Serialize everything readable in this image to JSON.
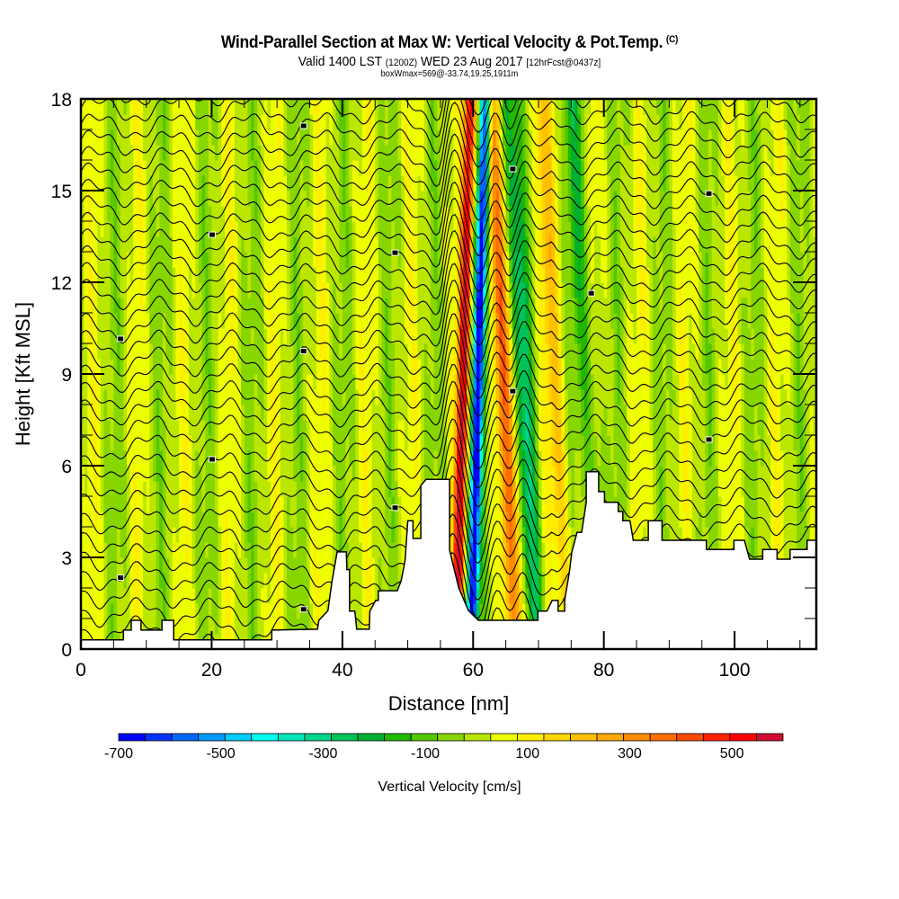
{
  "header": {
    "title": "Wind-Parallel Section at Max W: Vertical Velocity & Pot.Temp.",
    "copyright_mark": "(C)",
    "valid_prefix": "Valid 1400 LST",
    "valid_utc": "(1200Z)",
    "valid_date": "WED 23 Aug 2017",
    "forecast_info": "[12hrFcst@0437z]",
    "box_info": "boxWmax=569@-33.74,19.25,1911m"
  },
  "chart_data": {
    "type": "heatmap",
    "title": "Wind-Parallel Section at Max W: Vertical Velocity & Pot.Temp.",
    "subtitle": "Valid 1400 LST (1200Z) WED 23 Aug 2017 [12hrFcst@0437z]",
    "xlabel": "Distance [nm]",
    "ylabel": "Height [Kft MSL]",
    "xlim": [
      0,
      112.5
    ],
    "ylim": [
      0,
      18
    ],
    "x_ticks": [
      0,
      20,
      40,
      60,
      80,
      100
    ],
    "x_tick_labels": [
      "0",
      "20",
      "40",
      "60",
      "80",
      "100"
    ],
    "y_ticks": [
      0,
      3,
      6,
      9,
      12,
      15,
      18
    ],
    "y_tick_labels": [
      "0",
      "3",
      "6",
      "9",
      "12",
      "15",
      "18"
    ],
    "colorbar": {
      "title": "Vertical Velocity [cm/s]",
      "min": -700,
      "max": 600,
      "step": 50,
      "tick_values": [
        -700,
        -500,
        -300,
        -100,
        100,
        300,
        500
      ],
      "tick_labels": [
        "-700",
        "-500",
        "-300",
        "-100",
        "100",
        "300",
        "500"
      ],
      "colors": [
        "#0000ff",
        "#0033ff",
        "#0066ff",
        "#0099ff",
        "#00ccff",
        "#00ffee",
        "#00e6bb",
        "#00d68a",
        "#00c45a",
        "#00b030",
        "#22b800",
        "#55c800",
        "#88d600",
        "#bbe600",
        "#eeff00",
        "#ffee00",
        "#ffd500",
        "#ffc000",
        "#ffa800",
        "#ff8c00",
        "#ff6e00",
        "#ff4a00",
        "#ff2200",
        "#ff0000",
        "#d00a30"
      ]
    },
    "field_features": [
      {
        "name": "updraft core",
        "x_nm": 58.5,
        "w_cm_s": 520
      },
      {
        "name": "downdraft core",
        "x_nm": 60.8,
        "w_cm_s": -650
      },
      {
        "name": "updraft band",
        "x_nm": 64.8,
        "w_cm_s": 300
      },
      {
        "name": "downdraft band",
        "x_nm": 67.5,
        "w_cm_s": -250
      },
      {
        "name": "updraft band",
        "x_nm": 72.5,
        "w_cm_s": 150
      },
      {
        "name": "downdraft band",
        "x_nm": 77.5,
        "w_cm_s": -150
      }
    ],
    "overlay": "Potential temperature contours (black lines)",
    "terrain_profile": {
      "x_nm": [
        0,
        6.5,
        6.5,
        7.7,
        7.7,
        9.2,
        9.2,
        12.4,
        12.4,
        14.2,
        14.2,
        29.2,
        29.2,
        36.2,
        36.4,
        37.8,
        38.4,
        39.2,
        40.6,
        40.7,
        41.1,
        41.1,
        41.9,
        42.2,
        44.1,
        44.2,
        45.1,
        45.5,
        45.5,
        48.4,
        49.0,
        49.6,
        50.0,
        50.8,
        50.8,
        52.0,
        52.0,
        52.8,
        52.8,
        54.3,
        56.4,
        56.4,
        57.0,
        57.8,
        58.6,
        59.3,
        60.8,
        62.1,
        69.9,
        69.9,
        71.3,
        72.1,
        73.0,
        73.0,
        74.0,
        74.0,
        74.7,
        75.1,
        75.9,
        76.6,
        77.3,
        77.3,
        79.2,
        79.2,
        80.1,
        80.1,
        82.2,
        82.2,
        82.9,
        82.9,
        84.0,
        84.5,
        86.8,
        86.8,
        88.9,
        88.9,
        95.7,
        95.7,
        99.9,
        99.9,
        101.5,
        102.3,
        104.3,
        104.3,
        106.5,
        106.5,
        108.5,
        108.5,
        111.1,
        111.1,
        112.5
      ],
      "height_kft": [
        0.3,
        0.3,
        0.62,
        0.62,
        0.94,
        0.94,
        0.62,
        0.62,
        0.94,
        0.94,
        0.3,
        0.3,
        0.62,
        0.65,
        0.94,
        1.26,
        2.2,
        3.18,
        3.18,
        2.6,
        2.6,
        1.24,
        1.24,
        0.65,
        0.65,
        1.24,
        1.59,
        1.59,
        1.91,
        1.91,
        2.24,
        2.9,
        4.2,
        4.2,
        3.62,
        3.62,
        5.35,
        5.55,
        5.55,
        5.55,
        5.55,
        3.24,
        2.7,
        2.0,
        1.6,
        1.26,
        0.94,
        0.94,
        0.94,
        1.24,
        1.24,
        1.59,
        1.59,
        1.24,
        1.24,
        1.59,
        2.5,
        3.18,
        3.82,
        3.82,
        4.8,
        5.8,
        5.8,
        5.15,
        5.15,
        4.8,
        4.8,
        4.5,
        4.5,
        4.2,
        4.2,
        3.56,
        3.56,
        4.2,
        4.2,
        3.56,
        3.56,
        3.26,
        3.26,
        3.56,
        3.56,
        2.94,
        2.94,
        3.26,
        3.26,
        2.94,
        2.94,
        3.26,
        3.26,
        3.56,
        3.56
      ]
    }
  }
}
